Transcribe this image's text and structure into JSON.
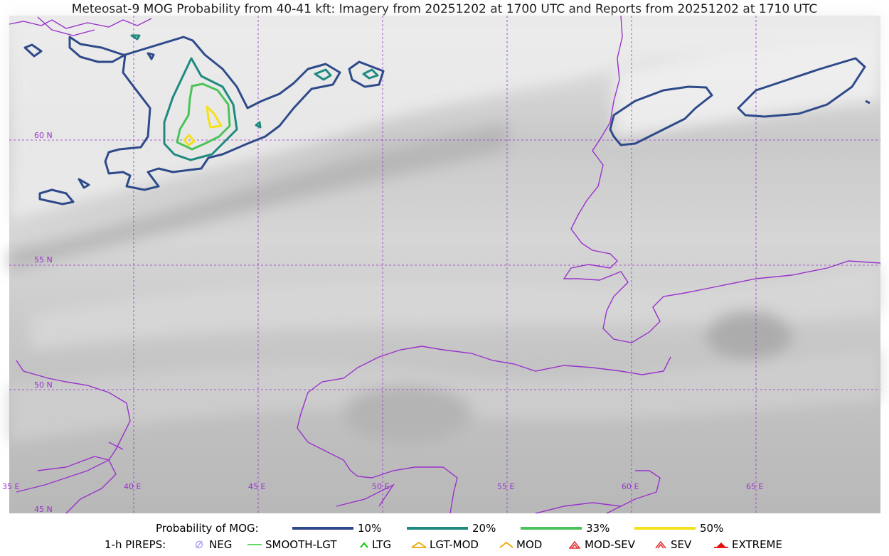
{
  "title": "Meteosat-9 MOG Probability from 40-41 kft: Imagery from 20251202 at 1700 UTC and Reports from 20251202 at 1710 UTC",
  "map": {
    "lon_labels": [
      "35 E",
      "40 E",
      "45 E",
      "50 E",
      "55 E",
      "60 E",
      "65 E"
    ],
    "lat_labels": [
      "45 N",
      "50 N",
      "55 N",
      "60 N"
    ],
    "gridline_color": "#9932cc",
    "coastline_color": "#9932cc"
  },
  "legend": {
    "prob_title": "Probability of MOG:",
    "prob_items": [
      {
        "label": "10%",
        "color": "#2e4a8a"
      },
      {
        "label": "20%",
        "color": "#1f8a80"
      },
      {
        "label": "33%",
        "color": "#4cc35a"
      },
      {
        "label": "50%",
        "color": "#f5e11a"
      }
    ],
    "pirep_title": "1-h PIREPS:",
    "pirep_items": [
      {
        "label": "NEG",
        "icon": "neg-icon",
        "color": "#b0a8f0"
      },
      {
        "label": "SMOOTH-LGT",
        "icon": "smooth-lgt-icon",
        "color": "#33cc33"
      },
      {
        "label": "LTG",
        "icon": "ltg-icon",
        "color": "#00cc00"
      },
      {
        "label": "LGT-MOD",
        "icon": "lgt-mod-icon",
        "color": "#f0a800"
      },
      {
        "label": "MOD",
        "icon": "mod-icon",
        "color": "#f0a800"
      },
      {
        "label": "MOD-SEV",
        "icon": "mod-sev-icon",
        "color": "#e03030"
      },
      {
        "label": "SEV",
        "icon": "sev-icon",
        "color": "#e03030"
      },
      {
        "label": "EXTREME",
        "icon": "extreme-icon",
        "color": "#e01010"
      }
    ]
  }
}
